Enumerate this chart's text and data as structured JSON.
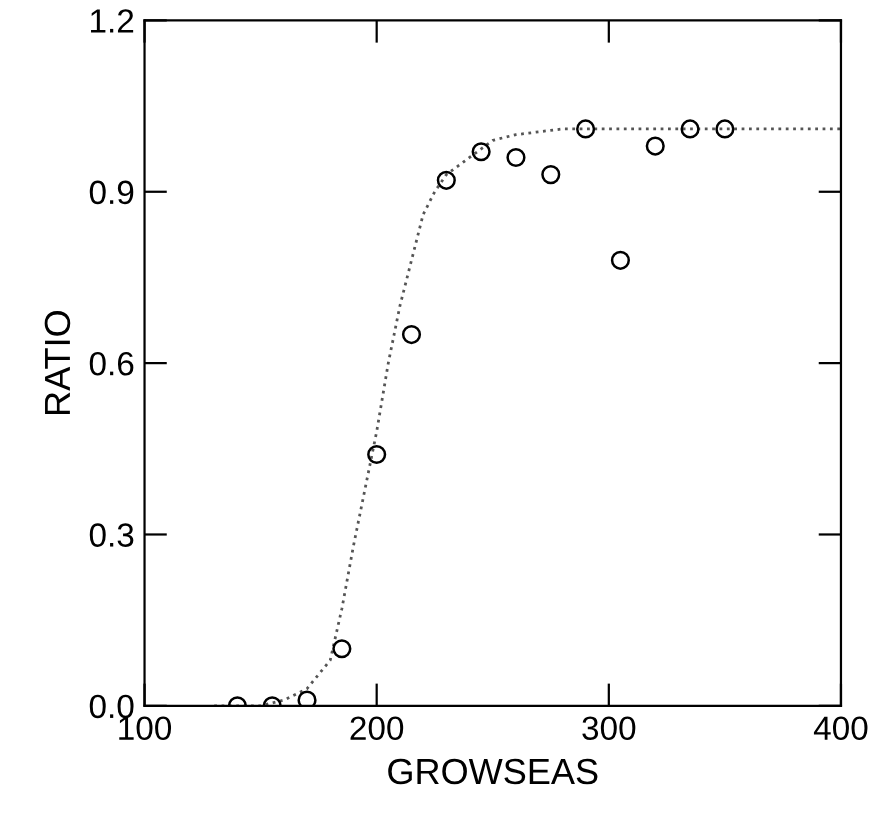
{
  "chart_data": {
    "type": "scatter",
    "xlabel": "GROWSEAS",
    "ylabel": "RATIO",
    "xlim": [
      100,
      400
    ],
    "xticks": [
      100,
      200,
      300,
      400
    ],
    "ylim": [
      0,
      1.2
    ],
    "yticks": [
      {
        "value": 0,
        "label": "0.0"
      },
      0.3,
      0.6,
      0.9,
      1.2
    ],
    "grid": false,
    "legend": false,
    "series": [
      {
        "marker": "circle",
        "color": "#000000",
        "x": [
          140,
          155,
          170,
          185,
          200,
          215,
          230,
          245,
          260,
          275,
          290,
          305,
          320,
          335,
          350
        ],
        "values": [
          0,
          0,
          0.01,
          0.1,
          0.44,
          0.65,
          0.92,
          0.97,
          0.96,
          0.93,
          1.01,
          0.78,
          0.98,
          1.01,
          1.01
        ]
      },
      {
        "type": "line",
        "marker": "none",
        "line_style": "dotted",
        "color": "#555555",
        "x": [
          130,
          150,
          160,
          170,
          180,
          185,
          190,
          195,
          200,
          205,
          210,
          215,
          220,
          225,
          230,
          240,
          250,
          260,
          280,
          300,
          400
        ],
        "values": [
          0,
          0,
          0.01,
          0.03,
          0.08,
          0.17,
          0.28,
          0.38,
          0.48,
          0.6,
          0.7,
          0.78,
          0.86,
          0.9,
          0.93,
          0.96,
          0.99,
          1.0,
          1.01,
          1.01,
          1.01
        ]
      }
    ]
  }
}
